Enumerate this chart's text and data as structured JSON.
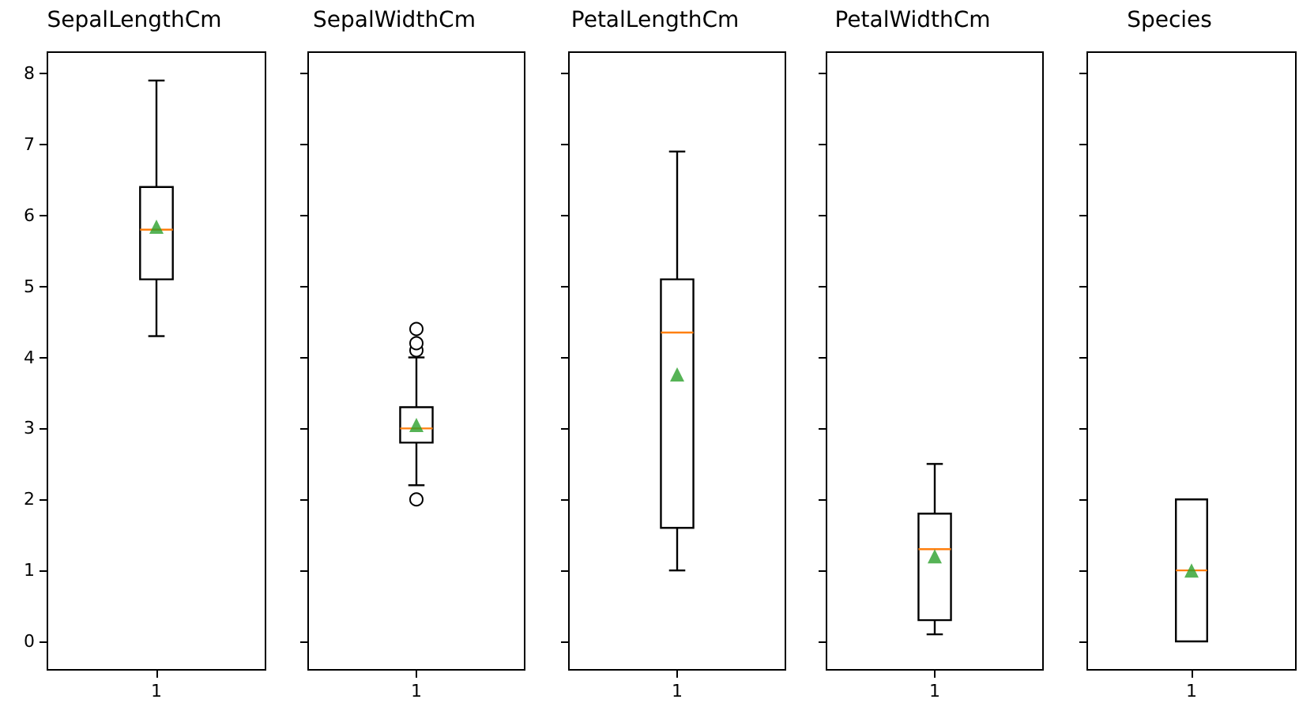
{
  "chart_data": [
    {
      "type": "box",
      "title": "SepalLengthCm",
      "categories": [
        "1"
      ],
      "boxes": [
        {
          "low": 4.3,
          "q1": 5.1,
          "median": 5.8,
          "q3": 6.4,
          "high": 7.9,
          "mean": 5.84
        }
      ],
      "ylim": [
        -0.4,
        8.3
      ],
      "yticks": [
        0,
        1,
        2,
        3,
        4,
        5,
        6,
        7,
        8
      ],
      "marker": "triangle"
    },
    {
      "type": "box",
      "title": "SepalWidthCm",
      "categories": [
        "1"
      ],
      "boxes": [
        {
          "low": 2.2,
          "q1": 2.8,
          "median": 3.0,
          "q3": 3.3,
          "high": 4.0,
          "mean": 3.05,
          "outliers": [
            4.4,
            4.1,
            4.2,
            2.0
          ]
        }
      ],
      "ylim": [
        -0.4,
        8.3
      ],
      "yticks": [
        0,
        1,
        2,
        3,
        4,
        5,
        6,
        7,
        8
      ],
      "tick_labels": "x",
      "marker": "triangle"
    },
    {
      "type": "box",
      "title": "PetalLengthCm",
      "categories": [
        "1"
      ],
      "boxes": [
        {
          "low": 1.0,
          "q1": 1.6,
          "median": 4.35,
          "q3": 5.1,
          "high": 6.9,
          "mean": 3.76
        }
      ],
      "ylim": [
        -0.4,
        8.3
      ],
      "yticks": [
        0,
        1,
        2,
        3,
        4,
        5,
        6,
        7,
        8
      ],
      "tick_labels": "x",
      "marker": "triangle"
    },
    {
      "type": "box",
      "title": "PetalWidthCm",
      "categories": [
        "1"
      ],
      "boxes": [
        {
          "low": 0.1,
          "q1": 0.3,
          "median": 1.3,
          "q3": 1.8,
          "high": 2.5,
          "mean": 1.2
        }
      ],
      "ylim": [
        -0.4,
        8.3
      ],
      "yticks": [
        0,
        1,
        2,
        3,
        4,
        5,
        6,
        7,
        8
      ],
      "tick_labels": "x",
      "marker": "triangle"
    },
    {
      "type": "box",
      "title": "Species",
      "categories": [
        "1"
      ],
      "boxes": [
        {
          "low": 0,
          "q1": 0,
          "median": 1,
          "q3": 2,
          "high": 2,
          "mean": 1
        }
      ],
      "ylim": [
        -0.4,
        8.3
      ],
      "yticks": [
        0,
        1,
        2,
        3,
        4,
        5,
        6,
        7,
        8
      ],
      "tick_labels": "x",
      "marker": "triangle"
    }
  ]
}
